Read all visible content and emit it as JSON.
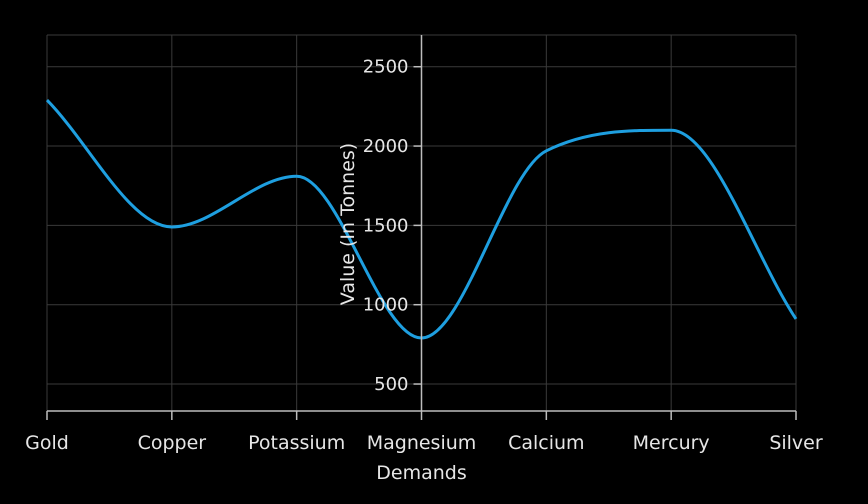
{
  "chart_data": {
    "type": "line",
    "smooth": true,
    "categories": [
      "Gold",
      "Copper",
      "Potassium",
      "Magnesium",
      "Calcium",
      "Mercury",
      "Silver"
    ],
    "series": [
      {
        "values": [
          2290,
          1490,
          1810,
          790,
          1970,
          2100,
          910
        ]
      }
    ],
    "xlabel": "Demands",
    "ylabel": "Value (In Tonnes)",
    "ylim": [
      330,
      2700
    ],
    "yticks": [
      500,
      1000,
      1500,
      2000,
      2500
    ],
    "grid": true,
    "y_axis_position": "center",
    "line_color": "#1e9fe0"
  }
}
